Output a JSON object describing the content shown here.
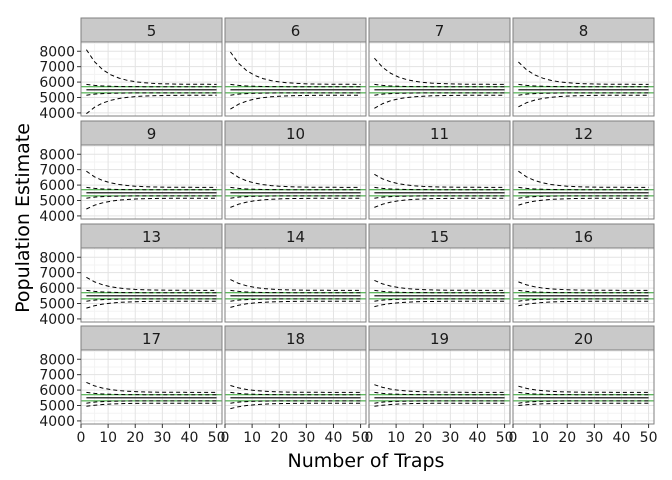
{
  "chart_data": {
    "type": "line",
    "facet_layout": "4x4 grid",
    "xlabel": "Number of Traps",
    "ylabel": "Population Estimate",
    "xlim": [
      0,
      52
    ],
    "ylim": [
      3800,
      8600
    ],
    "x_ticks": [
      0,
      10,
      20,
      30,
      40,
      50
    ],
    "x_tick_labels": [
      "0",
      "10",
      "20",
      "30",
      "40",
      "50"
    ],
    "y_ticks": [
      4000,
      5000,
      6000,
      7000,
      8000
    ],
    "y_tick_labels": [
      "4000",
      "5000",
      "6000",
      "7000",
      "8000"
    ],
    "grid": true,
    "colors": {
      "strip_fill": "#c9c9c9",
      "strip_border": "#7f7f7f",
      "panel_border": "#7f7f7f",
      "grid_major": "#e3e3e3",
      "grid_minor": "#f3f3f3",
      "reference_line": "#2ca02c",
      "series_line": "#000000"
    },
    "reference_band": [
      5300,
      5700
    ],
    "x": [
      2,
      5,
      8,
      11,
      14,
      17,
      20,
      23,
      26,
      29,
      32,
      35,
      38,
      41,
      44,
      47,
      50
    ],
    "panels": [
      {
        "label": "5",
        "upper_start": 8100,
        "lower_start": 3950
      },
      {
        "label": "6",
        "upper_start": 7950,
        "lower_start": 4250
      },
      {
        "label": "7",
        "upper_start": 7550,
        "lower_start": 4300
      },
      {
        "label": "8",
        "upper_start": 7300,
        "lower_start": 4400
      },
      {
        "label": "9",
        "upper_start": 6900,
        "lower_start": 4450
      },
      {
        "label": "10",
        "upper_start": 6850,
        "lower_start": 4550
      },
      {
        "label": "11",
        "upper_start": 6700,
        "lower_start": 4550
      },
      {
        "label": "12",
        "upper_start": 6900,
        "lower_start": 4700
      },
      {
        "label": "13",
        "upper_start": 6700,
        "lower_start": 4700
      },
      {
        "label": "14",
        "upper_start": 6550,
        "lower_start": 4750
      },
      {
        "label": "15",
        "upper_start": 6500,
        "lower_start": 4800
      },
      {
        "label": "16",
        "upper_start": 6400,
        "lower_start": 4850
      },
      {
        "label": "17",
        "upper_start": 6500,
        "lower_start": 4950
      },
      {
        "label": "18",
        "upper_start": 6300,
        "lower_start": 4800
      },
      {
        "label": "19",
        "upper_start": 6350,
        "lower_start": 4950
      },
      {
        "label": "20",
        "upper_start": 6250,
        "lower_start": 5000
      }
    ],
    "mean_estimate": 5500,
    "inner_band": [
      5300,
      5700
    ],
    "outer_band_end": [
      5150,
      5850
    ]
  }
}
